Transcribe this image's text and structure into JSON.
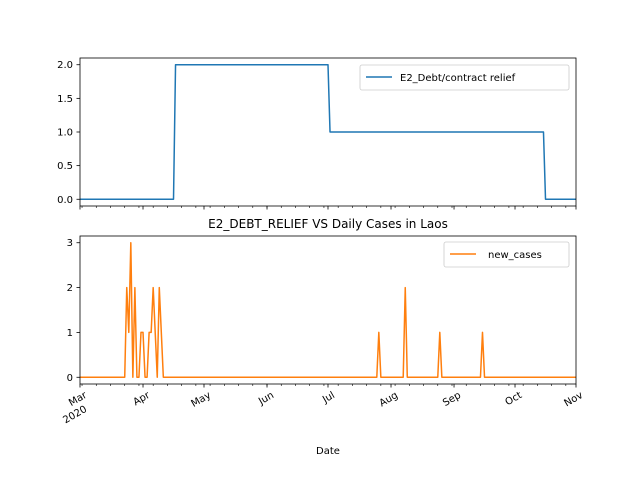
{
  "chart_data": [
    {
      "type": "line",
      "title": "",
      "xlabel": "",
      "ylabel": "",
      "xlim": [
        "2020-03-01",
        "2020-10-31"
      ],
      "ylim": [
        -0.1,
        2.1
      ],
      "yticks": [
        "0.0",
        "0.5",
        "1.0",
        "1.5",
        "2.0"
      ],
      "ytick_values": [
        0,
        0.5,
        1.0,
        1.5,
        2.0
      ],
      "legend_position": "top-right",
      "grid": false,
      "series": [
        {
          "name": "E2_Debt/contract relief",
          "color": "#1f77b4",
          "x": [
            "2020-03-01",
            "2020-04-16",
            "2020-04-17",
            "2020-07-01",
            "2020-07-02",
            "2020-10-15",
            "2020-10-16",
            "2020-10-31"
          ],
          "y": [
            0,
            0,
            2,
            2,
            1,
            1,
            0,
            0
          ]
        }
      ]
    },
    {
      "type": "line",
      "title": "E2_DEBT_RELIEF VS Daily Cases in Laos",
      "xlabel": "Date",
      "ylabel": "",
      "xlim": [
        "2020-03-01",
        "2020-10-31"
      ],
      "ylim": [
        -0.15,
        3.15
      ],
      "yticks": [
        "0",
        "1",
        "2",
        "3"
      ],
      "ytick_values": [
        0,
        1,
        2,
        3
      ],
      "xticks": [
        {
          "date": "2020-03-01",
          "label": "Mar",
          "sublabel": "2020"
        },
        {
          "date": "2020-04-01",
          "label": "Apr",
          "sublabel": ""
        },
        {
          "date": "2020-05-01",
          "label": "May",
          "sublabel": ""
        },
        {
          "date": "2020-06-01",
          "label": "Jun",
          "sublabel": ""
        },
        {
          "date": "2020-07-01",
          "label": "Jul",
          "sublabel": ""
        },
        {
          "date": "2020-08-01",
          "label": "Aug",
          "sublabel": ""
        },
        {
          "date": "2020-09-01",
          "label": "Sep",
          "sublabel": ""
        },
        {
          "date": "2020-10-01",
          "label": "Oct",
          "sublabel": ""
        },
        {
          "date": "2020-11-01",
          "label": "Nov",
          "sublabel": ""
        }
      ],
      "legend_position": "top-right",
      "grid": false,
      "series": [
        {
          "name": "new_cases",
          "color": "#ff7f0e",
          "x": [
            "2020-03-01",
            "2020-03-23",
            "2020-03-24",
            "2020-03-25",
            "2020-03-26",
            "2020-03-27",
            "2020-03-28",
            "2020-03-29",
            "2020-03-30",
            "2020-03-31",
            "2020-04-01",
            "2020-04-02",
            "2020-04-03",
            "2020-04-04",
            "2020-04-05",
            "2020-04-06",
            "2020-04-07",
            "2020-04-08",
            "2020-04-09",
            "2020-04-10",
            "2020-04-11",
            "2020-04-12",
            "2020-04-13",
            "2020-07-25",
            "2020-07-26",
            "2020-07-27",
            "2020-08-07",
            "2020-08-08",
            "2020-08-09",
            "2020-08-24",
            "2020-08-25",
            "2020-08-26",
            "2020-09-14",
            "2020-09-15",
            "2020-09-16",
            "2020-10-31"
          ],
          "y": [
            0,
            0,
            2,
            1,
            3,
            0,
            2,
            0,
            0,
            1,
            1,
            0,
            0,
            1,
            1,
            2,
            1,
            0,
            2,
            1,
            0,
            0,
            0,
            0,
            1,
            0,
            0,
            2,
            0,
            0,
            1,
            0,
            0,
            1,
            0,
            0
          ]
        }
      ]
    }
  ]
}
